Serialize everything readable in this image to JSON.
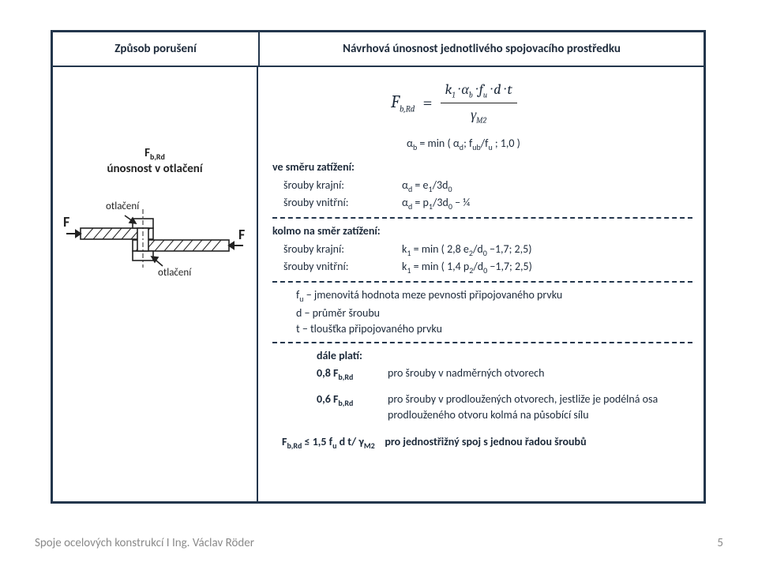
{
  "header": {
    "left": "Způsob porušení",
    "right": "Návrhová únosnost jednotlivého spojovacího prostředku"
  },
  "leftcol": {
    "symbol_html": "F<sub>b,Rd</sub>",
    "label": "únosnost v otlačení",
    "diagram": {
      "F_label": "F",
      "otlac_label": "otlačení"
    }
  },
  "formula": {
    "lhs": "F",
    "lhs_sub": "b,Rd",
    "eq": "=",
    "num": "k<sub>1</sub> · α<sub>b</sub> · f<sub>u</sub> · d · t",
    "den": "γ<sub>M2</sub>",
    "alpha_min": "α<sub>b</sub> = min ( α<sub>d</sub>; f<sub>ub</sub>/f<sub>u</sub> ; 1,0 )"
  },
  "block1": {
    "title": "ve směru zatížení:",
    "r1_lab": "šrouby krajní:",
    "r1_val": "α<sub>d</sub> = e<sub>1</sub>/3d<sub>0</sub>",
    "r2_lab": "šrouby vnitřní:",
    "r2_val": "α<sub>d</sub> = p<sub>1</sub>/3d<sub>0</sub> − ¼"
  },
  "block2": {
    "title": "kolmo na směr zatížení:",
    "r1_lab": "šrouby krajní:",
    "r1_val": "k<sub>1</sub> = min ( 2,8 e<sub>2</sub>/d<sub>0</sub> −1,7; 2,5)",
    "r2_lab": "šrouby vnitřní:",
    "r2_val": "k<sub>1</sub> = min ( 1,4 p<sub>2</sub>/d<sub>0</sub> −1,7; 2,5)"
  },
  "defs": {
    "l1": "f<sub>u</sub> − jmenovitá hodnota meze pevnosti připojovaného prvku",
    "l2": "d − průměr šroubu",
    "l3": "t  − tloušťka připojovaného prvku"
  },
  "dale": {
    "title": "dále platí:",
    "r1l": "0,8 F<sub>b,Rd</sub>",
    "r1r": "pro šrouby v nadměrných otvorech",
    "r2l": "0,6 F<sub>b,Rd</sub>",
    "r2r": "pro šrouby v prodloužených otvorech, jestliže je podélná osa prodlouženého otvoru kolmá na působící sílu"
  },
  "final": "F<sub>b,Rd</sub> ≤ 1,5 f<sub>u</sub> d t/ γ<sub>M2</sub>&nbsp;&nbsp;&nbsp;&nbsp;pro jednostřižný spoj s jednou řadou šroubů",
  "footer": {
    "text": "Spoje ocelových konstrukcí I    Ing. Václav Röder",
    "page": "5"
  }
}
